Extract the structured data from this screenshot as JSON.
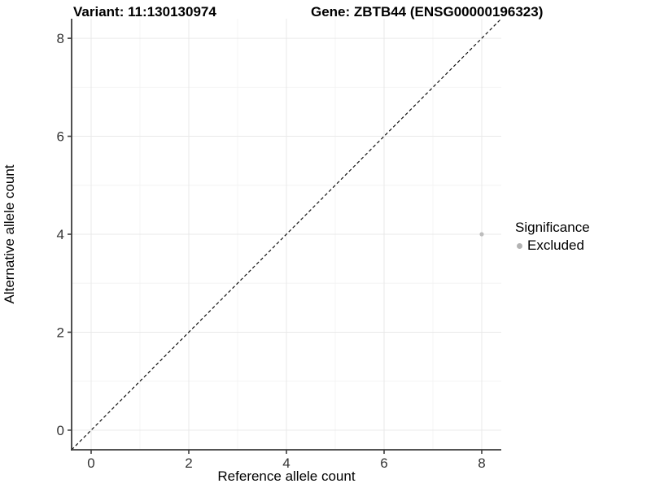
{
  "colors": {
    "background": "#ffffff",
    "panel_background": "#ffffff",
    "grid_major": "#e9e9e9",
    "grid_minor": "#f4f4f4",
    "axis_line": "#3c3c3c",
    "tick_label": "#333333",
    "identity_line": "#111111",
    "point": "#bdbdbd",
    "legend_swatch": "#b3b3b3",
    "text": "#000000"
  },
  "chart_data": {
    "type": "scatter",
    "title_left": "Variant: 11:130130974",
    "title_right": "Gene: ZBTB44 (ENSG00000196323)",
    "xlabel": "Reference allele count",
    "ylabel": "Alternative allele count",
    "xlim": [
      -0.4,
      8.4
    ],
    "ylim": [
      -0.4,
      8.4
    ],
    "xticks": [
      0,
      2,
      4,
      6,
      8
    ],
    "yticks": [
      0,
      2,
      4,
      6,
      8
    ],
    "xticks_minor": [
      1,
      3,
      5,
      7
    ],
    "yticks_minor": [
      1,
      3,
      5,
      7
    ],
    "grid": "major+minor",
    "identity_line": {
      "style": "dashed",
      "from": [
        -0.4,
        -0.4
      ],
      "to": [
        8.4,
        8.4
      ]
    },
    "series": [
      {
        "name": "Excluded",
        "color": "#bdbdbd",
        "points": [
          {
            "x": 8,
            "y": 4
          }
        ]
      }
    ],
    "legend": {
      "title": "Significance",
      "position": "right",
      "items": [
        {
          "label": "Excluded",
          "color": "#b3b3b3"
        }
      ]
    }
  }
}
